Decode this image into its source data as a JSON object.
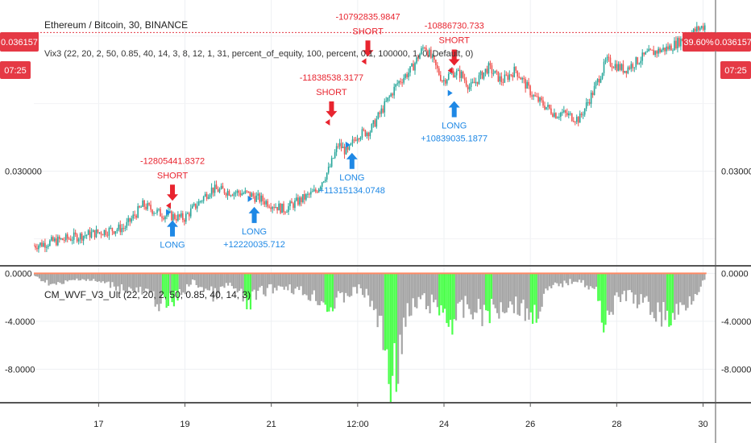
{
  "header": {
    "symbol_title": "Ethereum / Bitcoin, 30, BINANCE",
    "strategy_label": "Vix3 (22, 20, 2, 50, 0.85, 40, 14, 3, 8, 12, 1, 31, percent_of_equity, 100, percent, 0.1, 100000, 1, 0, Default, 0)",
    "indicator_label": "CM_WVF_V3_Ult (22, 20, 2, 50, 0.85, 40, 14, 3)"
  },
  "badges": {
    "price_left": "0.036157",
    "time_left": "07:25",
    "percent_right": "39.60%",
    "price_right": "0.036157",
    "time_right": "07:25"
  },
  "colors": {
    "up": "#26a69a",
    "down": "#ef5350",
    "short": "#e8242f",
    "long": "#1e88e5",
    "wvf_gray": "#a6a6a6",
    "wvf_green": "#4cff4c",
    "badge_red": "#e53945",
    "priceline": "#e53945"
  },
  "chart_data": [
    {
      "type": "candlestick",
      "title": "Ethereum / Bitcoin, 30, BINANCE",
      "x_tick_labels": [
        "17",
        "19",
        "21",
        "12:00",
        "24",
        "26",
        "28",
        "30"
      ],
      "y_tick_labels": [
        "0.030000"
      ],
      "ylim": [
        0.0258,
        0.0376
      ],
      "last_price": 0.036157,
      "path_x": [
        0,
        1.2,
        2.0,
        2.4,
        2.8,
        3.3,
        3.9,
        4.7,
        5.5,
        6.2,
        6.5,
        6.7,
        6.9,
        7.1,
        7.4,
        8.0,
        8.3,
        8.6,
        8.8,
        9.0,
        9.2,
        9.4,
        9.6,
        10.0,
        10.3,
        10.6,
        11.0,
        11.5,
        11.6,
        12.0,
        12.3,
        12.6,
        13.0,
        13.5,
        14.0,
        14.6,
        14.8
      ],
      "path_y": [
        0.0267,
        0.0272,
        0.0275,
        0.0285,
        0.0281,
        0.0279,
        0.0292,
        0.029,
        0.0283,
        0.0291,
        0.0301,
        0.0312,
        0.0308,
        0.0316,
        0.0318,
        0.0339,
        0.0345,
        0.0356,
        0.0348,
        0.034,
        0.0344,
        0.0343,
        0.0337,
        0.0346,
        0.034,
        0.0345,
        0.0333,
        0.0325,
        0.0326,
        0.0323,
        0.0335,
        0.0349,
        0.0345,
        0.0352,
        0.0355,
        0.0363,
        0.0365
      ],
      "signals": [
        {
          "side": "SHORT",
          "label": "SHORT",
          "pnl": "-12805441.8372",
          "x": 3.05,
          "price": 0.0284
        },
        {
          "side": "LONG",
          "label": "LONG",
          "pnl": "",
          "x": 3.05,
          "price": 0.0281
        },
        {
          "side": "LONG",
          "label": "LONG",
          "pnl": "+12220035.712",
          "x": 4.85,
          "price": 0.0287
        },
        {
          "side": "SHORT",
          "label": "SHORT",
          "pnl": "-11838538.3177",
          "x": 6.55,
          "price": 0.0321
        },
        {
          "side": "LONG",
          "label": "LONG",
          "pnl": "+11315134.0748",
          "x": 7.0,
          "price": 0.0311
        },
        {
          "side": "SHORT",
          "label": "SHORT",
          "pnl": "-10792835.9847",
          "x": 7.35,
          "price": 0.0348
        },
        {
          "side": "SHORT",
          "label": "SHORT",
          "pnl": "-10886730.733",
          "x": 9.25,
          "price": 0.0344
        },
        {
          "side": "LONG",
          "label": "LONG",
          "pnl": "+10839035.1877",
          "x": 9.25,
          "price": 0.0334
        }
      ]
    },
    {
      "type": "bar",
      "title": "CM_WVF_V3_Ult (22, 20, 2, 50, 0.85, 40, 14, 3)",
      "y_tick_labels": [
        "0.0000",
        "-4.0000",
        "-8.0000"
      ],
      "ylim": [
        -10.8,
        0.5
      ],
      "x": [
        0,
        0.5,
        1.0,
        1.5,
        2.0,
        2.5,
        2.9,
        3.1,
        3.5,
        4.0,
        4.3,
        4.7,
        5.0,
        5.5,
        6.0,
        6.3,
        6.5,
        6.9,
        7.2,
        7.5,
        7.7,
        7.8,
        7.9,
        8.0,
        8.2,
        8.5,
        9.0,
        9.2,
        9.5,
        9.8,
        10.0,
        10.5,
        11.0,
        11.3,
        11.5,
        12.0,
        12.4,
        12.5,
        13.0,
        13.5,
        14.0,
        14.5,
        14.8
      ],
      "values": [
        -0.3,
        -1.2,
        -0.5,
        -0.9,
        -1.5,
        -2.0,
        -3.2,
        -2.6,
        -0.8,
        -2.2,
        -1.0,
        -3.0,
        -1.8,
        -1.2,
        -2.0,
        -2.5,
        -3.4,
        -2.0,
        -1.5,
        -3.4,
        -6.5,
        -9.2,
        -10.3,
        -8.6,
        -4.5,
        -2.6,
        -3.6,
        -4.8,
        -3.3,
        -3.8,
        -3.9,
        -2.8,
        -4.2,
        -1.8,
        -1.2,
        -0.6,
        -2.0,
        -4.5,
        -2.0,
        -3.2,
        -4.5,
        -2.2,
        -0.4
      ],
      "highlight": [
        false,
        false,
        false,
        false,
        false,
        false,
        true,
        true,
        false,
        false,
        false,
        true,
        false,
        false,
        false,
        false,
        true,
        false,
        false,
        false,
        false,
        true,
        true,
        false,
        false,
        false,
        true,
        true,
        false,
        false,
        true,
        false,
        true,
        false,
        false,
        false,
        false,
        true,
        false,
        false,
        true,
        false,
        false
      ]
    }
  ]
}
